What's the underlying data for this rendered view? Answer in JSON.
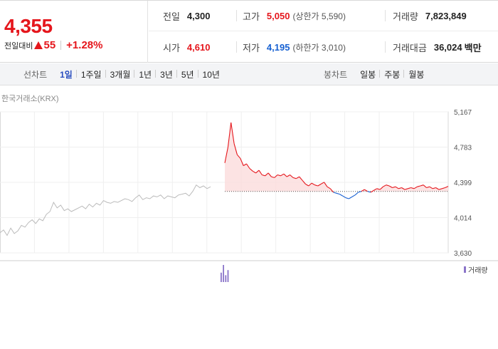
{
  "price": {
    "current": "4,355",
    "change_label": "전일대비",
    "change_value": "55",
    "change_percent": "+1.28%",
    "direction_icon": "triangle-up-icon",
    "up_color": "#e5161c",
    "down_color": "#1761d2"
  },
  "info": {
    "prev_close": {
      "label": "전일",
      "value": "4,300"
    },
    "high": {
      "label": "고가",
      "value": "5,050",
      "sub": "(상한가 5,590)"
    },
    "volume": {
      "label": "거래량",
      "value": "7,823,849"
    },
    "open": {
      "label": "시가",
      "value": "4,610"
    },
    "low": {
      "label": "저가",
      "value": "4,195",
      "sub": "(하한가 3,010)"
    },
    "trade_amount": {
      "label": "거래대금",
      "value": "36,024",
      "unit": "백만"
    }
  },
  "period_bar": {
    "line_label": "선차트",
    "line_periods": [
      "1일",
      "1주일",
      "3개월",
      "1년",
      "3년",
      "5년",
      "10년"
    ],
    "active_line_period": "1일",
    "candle_label": "봉차트",
    "candle_periods": [
      "일봉",
      "주봉",
      "월봉"
    ]
  },
  "chart": {
    "source": "한국거래소(KRX)",
    "volume_legend": "거래량",
    "colors": {
      "up_line": "#e5161c",
      "down_line": "#1761d2",
      "prev_line": "#bbbbbb",
      "volume": "#8a74c9",
      "up_fill": "#fbdcdc"
    }
  },
  "chart_data": {
    "type": "line",
    "yticks": [
      "5,167",
      "4,783",
      "4,399",
      "4,014",
      "3,630"
    ],
    "ylim": [
      3630,
      5167
    ],
    "prev_close": 4300,
    "series": [
      {
        "values": [
          3850,
          3880,
          3820,
          3900,
          3840,
          3870,
          3930,
          3910,
          3960,
          3990,
          3950,
          4000,
          3980,
          4050,
          4080,
          4180,
          4120,
          4150,
          4090,
          4110,
          4080,
          4100,
          4120,
          4140,
          4110,
          4160,
          4130,
          4170,
          4150,
          4200,
          4180,
          4170,
          4190,
          4180,
          4200,
          4220,
          4210,
          4190,
          4230,
          4260,
          4210,
          4230,
          4220,
          4250,
          4240,
          4260,
          4220,
          4250,
          4240,
          4230,
          4260,
          4270,
          4280,
          4250,
          4300,
          4370,
          4340,
          4360,
          4330,
          4350
        ]
      },
      {
        "values": [
          4610,
          4780,
          5050,
          4820,
          4700,
          4660,
          4580,
          4600,
          4550,
          4520,
          4500,
          4530,
          4480,
          4470,
          4500,
          4460,
          4450,
          4480,
          4470,
          4490,
          4460,
          4480,
          4450,
          4440,
          4460,
          4420,
          4380,
          4360,
          4390,
          4370,
          4360,
          4380,
          4400,
          4350,
          4330,
          4290,
          4280,
          4270,
          4250,
          4230,
          4220,
          4240,
          4260,
          4290,
          4300,
          4320,
          4300,
          4290,
          4310,
          4330,
          4320,
          4350,
          4370,
          4360,
          4340,
          4350,
          4330,
          4340,
          4320,
          4330,
          4340,
          4330,
          4350,
          4360,
          4370,
          4340,
          4350,
          4330,
          4340,
          4320,
          4330,
          4340,
          4355
        ]
      }
    ],
    "volume": [
      0,
      0,
      0,
      0,
      0,
      0,
      0,
      0,
      0,
      0,
      0,
      0,
      0,
      0,
      0,
      0,
      0,
      0,
      0,
      0,
      0,
      0,
      0,
      0,
      0,
      0,
      0,
      0,
      0,
      0,
      0,
      0,
      0,
      0,
      0,
      0,
      0,
      0,
      0,
      0,
      0,
      0,
      0,
      0,
      0,
      0,
      0,
      0,
      0,
      0,
      0,
      0,
      0,
      0,
      0,
      0,
      0,
      0,
      0,
      0,
      55,
      100,
      40,
      70,
      0,
      0,
      0,
      0,
      0,
      0
    ]
  }
}
